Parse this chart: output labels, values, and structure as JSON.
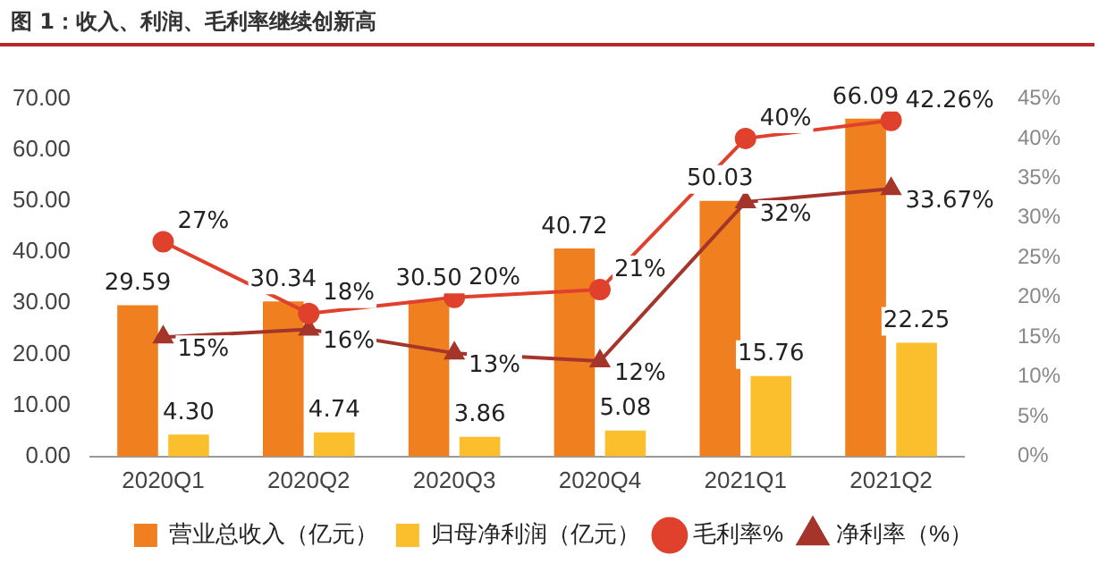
{
  "chart_data": {
    "type": "bar",
    "title": "图 1：收入、利润、毛利率继续创新高",
    "categories": [
      "2020Q1",
      "2020Q2",
      "2020Q3",
      "2020Q4",
      "2021Q1",
      "2021Q2"
    ],
    "series": [
      {
        "name": "营业总收入（亿元）",
        "color": "#f07f1f",
        "values": [
          29.59,
          30.34,
          30.5,
          40.72,
          50.03,
          66.09
        ],
        "value_labels": [
          "29.59",
          "30.34",
          "30.50",
          "40.72",
          "50.03",
          "66.09"
        ]
      },
      {
        "name": "归母净利润（亿元）",
        "color": "#fbbf2d",
        "values": [
          4.3,
          4.74,
          3.86,
          5.08,
          15.76,
          22.25
        ],
        "value_labels": [
          "4.30",
          "4.74",
          "3.86",
          "5.08",
          "15.76",
          "22.25"
        ]
      },
      {
        "name": "毛利率%",
        "type": "line",
        "axis": "y2",
        "marker": "circle",
        "color": "#e0412d",
        "values": [
          27,
          18,
          20,
          21,
          40,
          42.26
        ],
        "value_labels": [
          "27%",
          "18%",
          "20%",
          "21%",
          "40%",
          "42.26%"
        ]
      },
      {
        "name": "净利率（%）",
        "type": "line",
        "axis": "y2",
        "marker": "triangle",
        "color": "#a5352a",
        "values": [
          15,
          16,
          13,
          12,
          32,
          33.67
        ],
        "value_labels": [
          "15%",
          "16%",
          "13%",
          "12%",
          "32%",
          "33.67%"
        ]
      }
    ],
    "ylim": [
      0,
      70
    ],
    "yticks": [
      {
        "value": 0,
        "label": "0.00"
      },
      {
        "value": 10,
        "label": "10.00"
      },
      {
        "value": 20,
        "label": "20.00"
      },
      {
        "value": 30,
        "label": "30.00"
      },
      {
        "value": 40,
        "label": "40.00"
      },
      {
        "value": 50,
        "label": "50.00"
      },
      {
        "value": 60,
        "label": "60.00"
      },
      {
        "value": 70,
        "label": "70.00"
      }
    ],
    "y2lim": [
      0,
      45
    ],
    "y2ticks": [
      {
        "value": 0,
        "label": "0%"
      },
      {
        "value": 5,
        "label": "5%"
      },
      {
        "value": 10,
        "label": "10%"
      },
      {
        "value": 15,
        "label": "15%"
      },
      {
        "value": 20,
        "label": "20%"
      },
      {
        "value": 25,
        "label": "25%"
      },
      {
        "value": 30,
        "label": "30%"
      },
      {
        "value": 35,
        "label": "35%"
      },
      {
        "value": 40,
        "label": "40%"
      },
      {
        "value": 45,
        "label": "45%"
      }
    ],
    "grid": false,
    "legend": "bottom"
  }
}
